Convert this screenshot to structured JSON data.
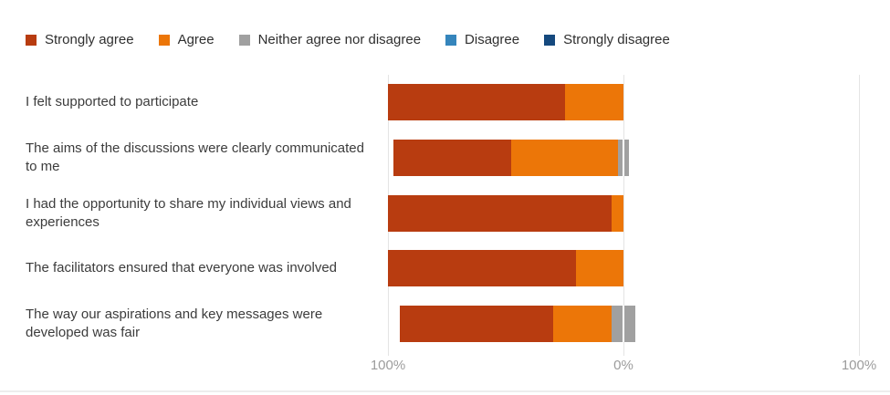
{
  "legend": {
    "items": [
      {
        "label": "Strongly agree",
        "color": "#B83C10"
      },
      {
        "label": "Agree",
        "color": "#EC7608"
      },
      {
        "label": "Neither agree nor disagree",
        "color": "#A0A0A0"
      },
      {
        "label": "Disagree",
        "color": "#3585BC"
      },
      {
        "label": "Strongly disagree",
        "color": "#15497E"
      }
    ]
  },
  "chart_data": {
    "type": "bar",
    "subtype": "horizontal-diverging-stacked-likert",
    "title": "",
    "categories": [
      "I felt supported to participate",
      "The aims of the discussions were clearly communicated to me",
      "I had the opportunity to share my individual views and experiences",
      "The facilitators ensured that everyone was involved",
      "The way our aspirations and key messages were developed was fair"
    ],
    "series": [
      {
        "name": "Strongly agree",
        "color": "#B83C10",
        "values": [
          75,
          50,
          95,
          80,
          65
        ]
      },
      {
        "name": "Agree",
        "color": "#EC7608",
        "values": [
          25,
          45,
          5,
          20,
          25
        ]
      },
      {
        "name": "Neither agree nor disagree",
        "color": "#A0A0A0",
        "values": [
          0,
          5,
          0,
          0,
          10
        ]
      },
      {
        "name": "Disagree",
        "color": "#3585BC",
        "values": [
          0,
          0,
          0,
          0,
          0
        ]
      },
      {
        "name": "Strongly disagree",
        "color": "#15497E",
        "values": [
          0,
          0,
          0,
          0,
          0
        ]
      }
    ],
    "units": "percent",
    "x_axis": {
      "tick_labels": [
        "100%",
        "0%",
        "100%"
      ],
      "left_max": 100,
      "right_max": 100
    },
    "neutral_straddles_zero": true,
    "grid": true,
    "legend_position": "top"
  }
}
